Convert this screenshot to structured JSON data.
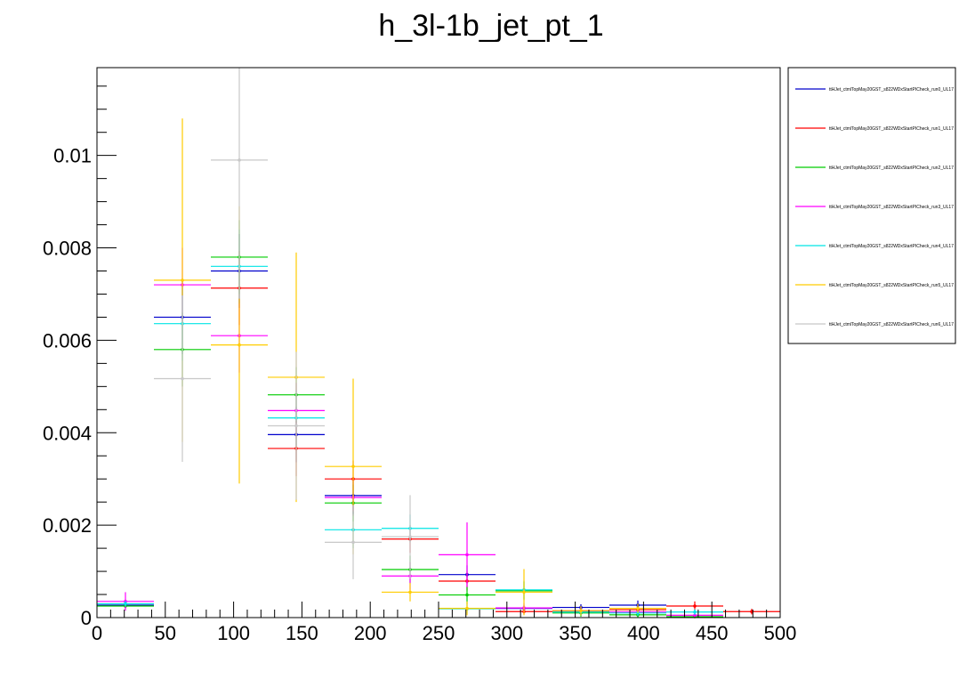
{
  "chart_data": {
    "type": "histogram",
    "title": "h_3l-1b_jet_pt_1",
    "xlabel": "",
    "ylabel": "",
    "xlim": [
      0,
      500
    ],
    "ylim": [
      0,
      0.0119
    ],
    "x_ticks": [
      0,
      50,
      100,
      150,
      200,
      250,
      300,
      350,
      400,
      450,
      500
    ],
    "x_tick_labels": [
      "0",
      "50",
      "100",
      "150",
      "200",
      "250",
      "300",
      "350",
      "400",
      "450",
      "500"
    ],
    "y_ticks": [
      0,
      0.002,
      0.004,
      0.006,
      0.008,
      0.01
    ],
    "y_tick_labels": [
      "0",
      "0.002",
      "0.004",
      "0.006",
      "0.008",
      "0.01"
    ],
    "bin_edges": [
      0,
      41.67,
      83.33,
      125,
      166.67,
      208.33,
      250,
      291.67,
      333.33,
      375,
      416.67,
      458.33,
      500
    ],
    "legend_position": "right, outside plot",
    "series": [
      {
        "name": "ttHJet_ctmlTopMay20GST_s822WDxStartPICheck_run0_UL17",
        "color": "#0000cc",
        "values": [
          0.00027,
          0.0065,
          0.0075,
          0.00396,
          0.00264,
          0.0,
          0.00093,
          0.0002,
          0.00022,
          0.00027,
          0.0,
          0.0
        ],
        "errors": [
          6e-05,
          0.0008,
          0.0008,
          0.0006,
          0.0004,
          0.0,
          0.0002,
          7e-05,
          7e-05,
          0.0001,
          0.0,
          0.0
        ]
      },
      {
        "name": "ttHJet_ctmlTopMay20GST_s822WDxStartPICheck_run1_UL17",
        "color": "#ff0000",
        "values": [
          0.0,
          0.0,
          0.00713,
          0.00366,
          0.003,
          0.0017,
          0.00079,
          0.00013,
          0.00013,
          0.00017,
          0.00025,
          0.00013
        ],
        "errors": [
          0.0,
          0.0,
          0.0008,
          0.0006,
          0.0004,
          0.0003,
          0.0002,
          6e-05,
          6e-05,
          7e-05,
          0.0001,
          6e-05
        ]
      },
      {
        "name": "ttHJet_ctmlTopMay20GST_s822WDxStartPICheck_run2_UL17",
        "color": "#00cc00",
        "values": [
          0.00025,
          0.0058,
          0.0078,
          0.00482,
          0.00248,
          0.00104,
          0.00049,
          0.00058,
          0.0001,
          6e-05,
          2e-05,
          0.0
        ],
        "errors": [
          6e-05,
          0.0008,
          0.0008,
          0.0006,
          0.0004,
          0.0003,
          0.0002,
          0.0002,
          8e-05,
          5e-05,
          2e-05,
          0.0
        ]
      },
      {
        "name": "ttHJet_ctmlTopMay20GST_s822WDxStartPICheck_run3_UL17",
        "color": "#ff00ff",
        "values": [
          0.00035,
          0.0072,
          0.0061,
          0.00448,
          0.0026,
          0.0009,
          0.00136,
          0.00021,
          0.00015,
          0.00012,
          5e-05,
          0.0
        ],
        "errors": [
          0.0002,
          0.0008,
          0.0008,
          0.0006,
          0.0004,
          0.0003,
          0.0007,
          0.0001,
          8e-05,
          7e-05,
          3e-05,
          0.0
        ]
      },
      {
        "name": "ttHJet_ctmlTopMay20GST_s822WDxStartPICheck_run4_UL17",
        "color": "#00e5e5",
        "values": [
          0.0003,
          0.00636,
          0.0076,
          0.00432,
          0.0019,
          0.00193,
          0.00019,
          0.0006,
          0.00012,
          0.0001,
          0.00012,
          0.0
        ],
        "errors": [
          6e-05,
          0.0008,
          0.0008,
          0.0006,
          0.0004,
          0.0003,
          0.0001,
          0.0002,
          6e-05,
          6e-05,
          6e-05,
          0.0
        ]
      },
      {
        "name": "ttHJet_ctmlTopMay20GST_s822WDxStartPICheck_run5_UL17",
        "color": "#ffcc00",
        "values": [
          0.0,
          0.0073,
          0.0059,
          0.0052,
          0.00327,
          0.00055,
          0.0002,
          0.00055,
          0.00015,
          0.0002,
          0.0,
          0.0
        ],
        "errors": [
          0.0,
          0.0035,
          0.003,
          0.0027,
          0.0019,
          0.0002,
          0.00015,
          0.0005,
          0.0001,
          0.0001,
          0.0,
          0.0
        ]
      },
      {
        "name": "ttHJet_ctmlTopMay20GST_s822WDxStartPICheck_run6_UL17",
        "color": "#c8c8c8",
        "values": [
          0.0,
          0.00517,
          0.0099,
          0.00415,
          0.00163,
          0.00175,
          0.0,
          0.0,
          0.0,
          0.0,
          0.0,
          0.0
        ],
        "errors": [
          0.0,
          0.0018,
          0.003,
          0.0016,
          0.0008,
          0.0009,
          0.0,
          0.0,
          0.0,
          0.0,
          0.0,
          0.0
        ]
      }
    ]
  }
}
